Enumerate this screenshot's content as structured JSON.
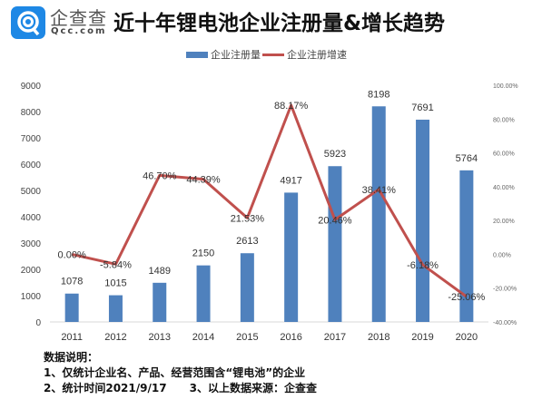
{
  "brand": {
    "name": "企查查",
    "domain": "Qcc.com"
  },
  "chart_data": {
    "type": "bar+line",
    "title": "近十年锂电池企业注册量&增长趋势",
    "categories": [
      "2011",
      "2012",
      "2013",
      "2014",
      "2015",
      "2016",
      "2017",
      "2018",
      "2019",
      "2020"
    ],
    "series": [
      {
        "name": "企业注册量",
        "type": "bar",
        "axis": "left",
        "color": "#4f81bd",
        "values": [
          1078,
          1015,
          1489,
          2150,
          2613,
          4917,
          5923,
          8198,
          7691,
          5764
        ],
        "labels": [
          "1078",
          "1015",
          "1489",
          "2150",
          "2613",
          "4917",
          "5923",
          "8198",
          "7691",
          "5764"
        ]
      },
      {
        "name": "企业注册增速",
        "type": "line",
        "axis": "right",
        "color": "#c0504d",
        "values": [
          0.0,
          -5.84,
          46.7,
          44.39,
          21.53,
          88.17,
          20.46,
          38.41,
          -6.18,
          -25.06
        ],
        "labels": [
          "0.00%",
          "-5.84%",
          "46.70%",
          "44.39%",
          "21.53%",
          "88.17%",
          "20.46%",
          "38.41%",
          "-6.18%",
          "-25.06%"
        ]
      }
    ],
    "left_axis": {
      "ylim": [
        0,
        9000
      ],
      "ticks": [
        "0",
        "1000",
        "2000",
        "3000",
        "4000",
        "5000",
        "6000",
        "7000",
        "8000",
        "9000"
      ]
    },
    "right_axis": {
      "ylim": [
        -40,
        100
      ],
      "ticks": [
        "-40.00%",
        "-20.00%",
        "0.00%",
        "20.00%",
        "40.00%",
        "60.00%",
        "80.00%",
        "100.00%"
      ]
    },
    "legend": "top",
    "grid": false
  },
  "notes": {
    "heading": "数据说明：",
    "line1": "1、仅统计企业名、产品、经营范围含“锂电池”的企业",
    "line2": "2、统计时间2021/9/17      3、以上数据来源：企查查"
  }
}
